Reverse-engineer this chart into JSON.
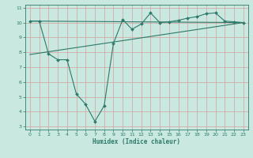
{
  "title": "",
  "xlabel": "Humidex (Indice chaleur)",
  "ylabel": "",
  "bg_color": "#c8e8e0",
  "line_color": "#2d7a6a",
  "grid_color": "#b0d8d0",
  "xlim": [
    -0.5,
    23.5
  ],
  "ylim": [
    2.8,
    11.2
  ],
  "xticks": [
    0,
    1,
    2,
    3,
    4,
    5,
    6,
    7,
    8,
    9,
    10,
    11,
    12,
    13,
    14,
    15,
    16,
    17,
    18,
    19,
    20,
    21,
    22,
    23
  ],
  "yticks": [
    3,
    4,
    5,
    6,
    7,
    8,
    9,
    10,
    11
  ],
  "curve_x": [
    0,
    1,
    2,
    3,
    4,
    5,
    6,
    7,
    8,
    9,
    10,
    11,
    12,
    13,
    14,
    15,
    16,
    17,
    18,
    19,
    20,
    21,
    22,
    23
  ],
  "curve_y": [
    10.1,
    10.1,
    7.9,
    7.5,
    7.5,
    5.2,
    4.5,
    3.35,
    4.4,
    8.6,
    10.2,
    9.55,
    9.9,
    10.65,
    10.0,
    10.05,
    10.15,
    10.3,
    10.4,
    10.6,
    10.65,
    10.1,
    10.05,
    10.0
  ],
  "line1_x": [
    0,
    23
  ],
  "line1_y": [
    10.1,
    10.0
  ],
  "line2_x": [
    0,
    23
  ],
  "line2_y": [
    7.85,
    10.0
  ]
}
